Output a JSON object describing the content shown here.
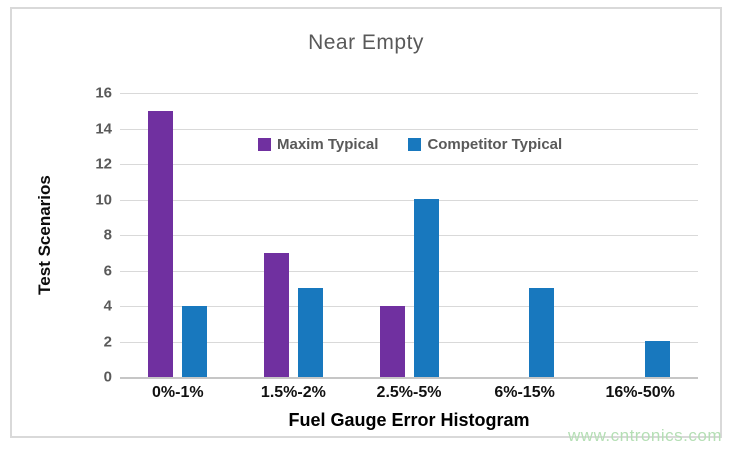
{
  "chart_data": {
    "type": "bar",
    "title": "Near Empty",
    "categories": [
      "0%-1%",
      "1.5%-2%",
      "2.5%-5%",
      "6%-15%",
      "16%-50%"
    ],
    "series": [
      {
        "name": "Maxim Typical",
        "color": "#7030A0",
        "values": [
          15,
          7,
          4,
          0,
          0
        ]
      },
      {
        "name": "Competitor Typical",
        "color": "#1878BE",
        "values": [
          4,
          5,
          10,
          5,
          2
        ]
      }
    ],
    "xlabel": "Fuel Gauge Error Histogram",
    "ylabel": "Test Scenarios",
    "ylim": [
      0,
      16
    ],
    "ytick_step": 2,
    "grid": true,
    "legend_position": "inside-top",
    "gridline_color": "#d9d9d9",
    "axis_line_color": "#c6c6c6",
    "tick_label_color": "#595959",
    "title_color": "#595959"
  },
  "watermark": {
    "text": "www.cntronics.com",
    "color": "#b5dfb5"
  }
}
